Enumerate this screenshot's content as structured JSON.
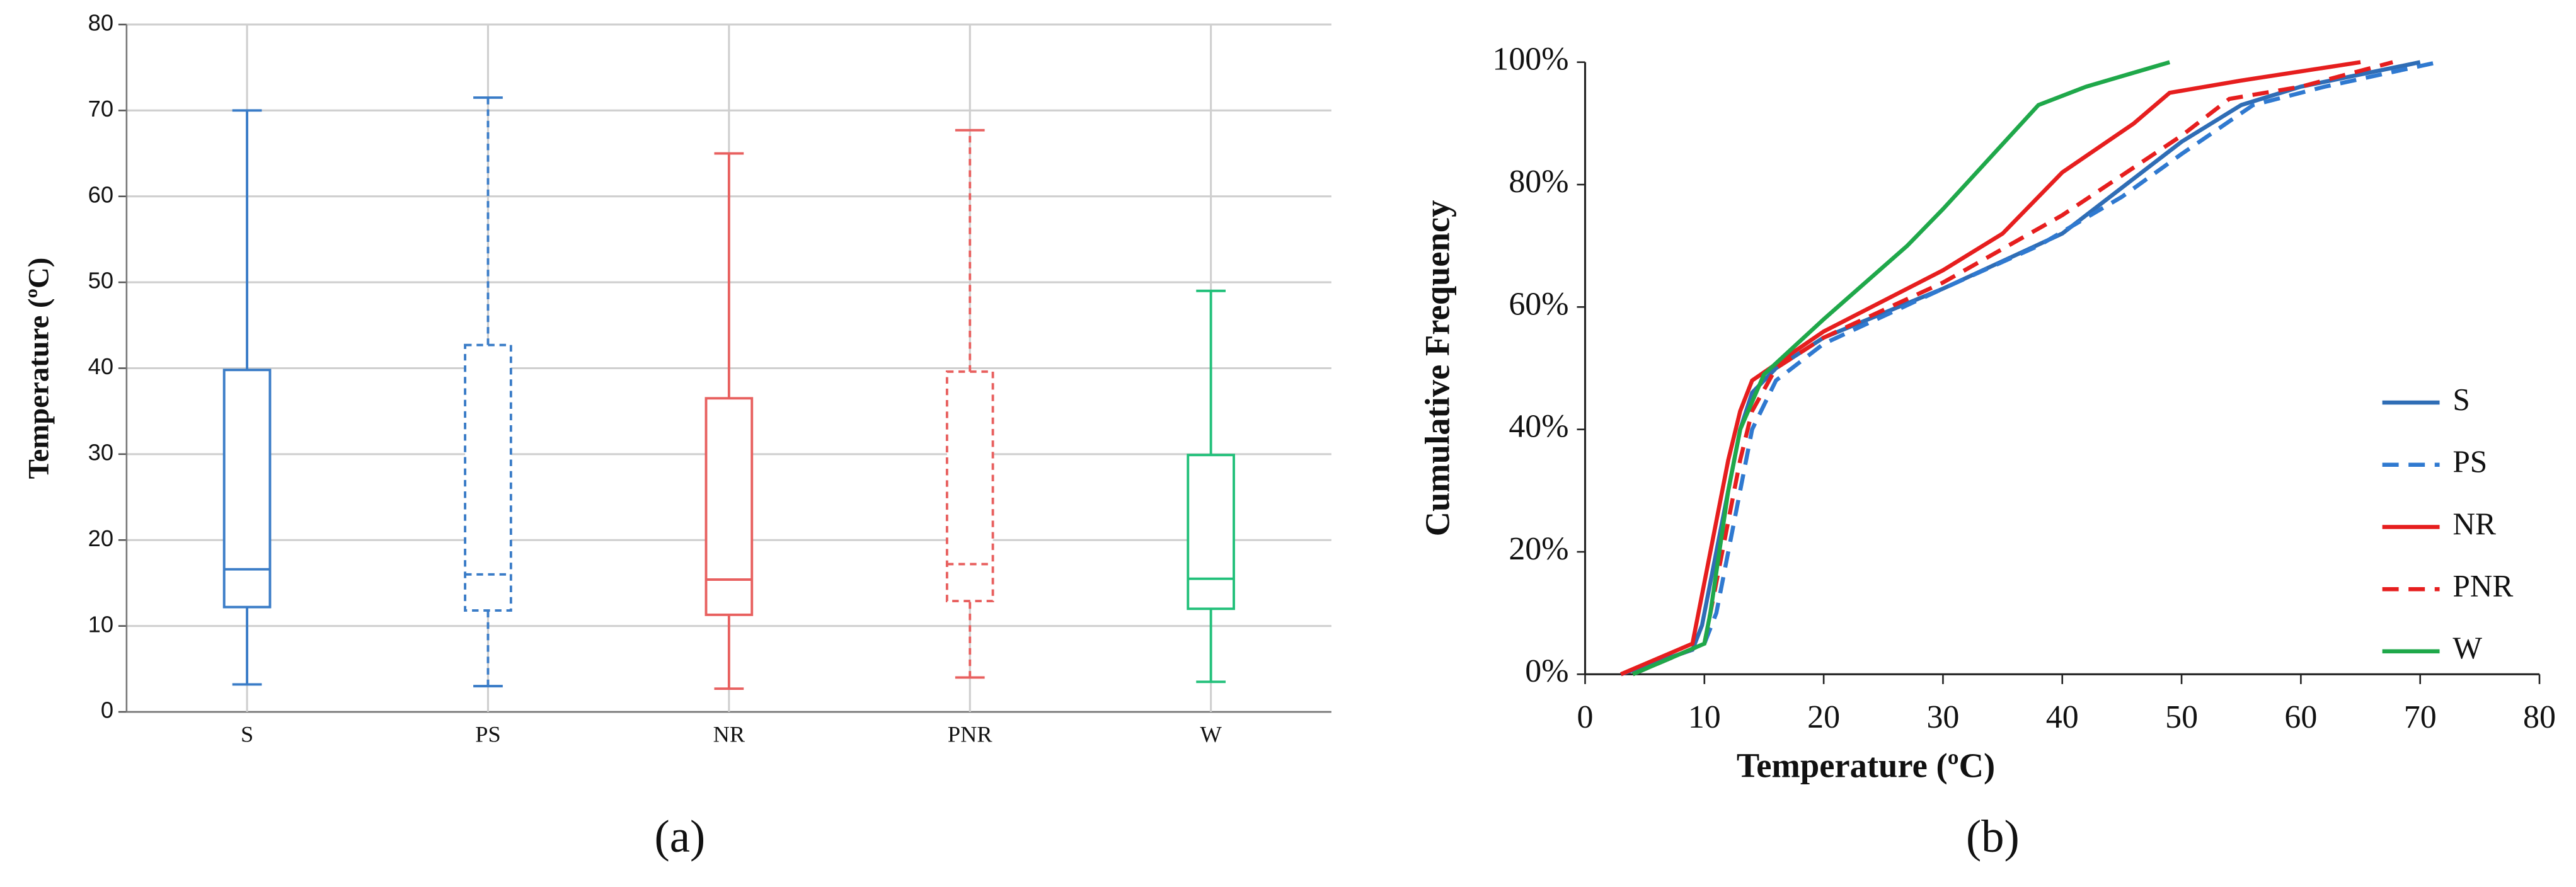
{
  "chart_data": [
    {
      "type": "box",
      "caption": "(a)",
      "y_label": "Temperature  (ºC)",
      "categories": [
        "S",
        "PS",
        "NR",
        "PNR",
        "W"
      ],
      "min": [
        3.2,
        3,
        2.7,
        4,
        3.5
      ],
      "q1": [
        12.2,
        11.8,
        11.3,
        12.9,
        12
      ],
      "median": [
        16.6,
        16,
        15.4,
        17.2,
        15.5
      ],
      "q3": [
        39.8,
        42.7,
        36.5,
        39.6,
        29.9
      ],
      "max": [
        70,
        71.5,
        65,
        67.7,
        49
      ],
      "colors": [
        "#3a7cc7",
        "#3a7cc7",
        "#e8605f",
        "#e8605f",
        "#22c07a"
      ],
      "dashed": [
        false,
        true,
        false,
        true,
        false
      ],
      "ylim": [
        0,
        80
      ],
      "yticks": [
        0,
        10,
        20,
        30,
        40,
        50,
        60,
        70,
        80
      ],
      "grid": true
    },
    {
      "type": "line",
      "caption": "(b)",
      "x_label": "Temperature (ºC)",
      "y_label": "Cumulative  Frequency",
      "xlim": [
        0,
        80
      ],
      "xticks": [
        0,
        10,
        20,
        30,
        40,
        50,
        60,
        70,
        80
      ],
      "ylim": [
        0,
        100
      ],
      "yticks": [
        {
          "value": 0,
          "label": "0%"
        },
        {
          "value": 20,
          "label": "20%"
        },
        {
          "value": 40,
          "label": "40%"
        },
        {
          "value": 60,
          "label": "60%"
        },
        {
          "value": 80,
          "label": "80%"
        },
        {
          "value": 100,
          "label": "100%"
        }
      ],
      "legend": "right",
      "series": [
        {
          "name": "S",
          "color": "#2f6db5",
          "dashed": false,
          "x": [
            3,
            9,
            9.8,
            10.5,
            12,
            13,
            14,
            16,
            20,
            30,
            40,
            50,
            55,
            60,
            70
          ],
          "values": [
            0,
            4,
            8,
            15,
            30,
            40,
            46,
            50,
            55,
            63,
            72,
            87,
            93,
            96,
            100
          ]
        },
        {
          "name": "PS",
          "color": "#2f79d0",
          "dashed": true,
          "x": [
            4,
            10,
            11,
            12,
            13,
            14,
            16,
            20,
            30,
            38,
            45,
            50,
            56,
            62,
            71.5
          ],
          "values": [
            0,
            5,
            10,
            20,
            30,
            40,
            48,
            54,
            63,
            70,
            78,
            85,
            93,
            96,
            100
          ]
        },
        {
          "name": "NR",
          "color": "#e61e1e",
          "dashed": false,
          "x": [
            3,
            9,
            9.5,
            11,
            12,
            13,
            14,
            20,
            30,
            35,
            40,
            46,
            49,
            55,
            65
          ],
          "values": [
            0,
            5,
            10,
            25,
            35,
            43,
            48,
            56,
            66,
            72,
            82,
            90,
            95,
            97,
            100
          ]
        },
        {
          "name": "PNR",
          "color": "#e61e1e",
          "dashed": true,
          "x": [
            4,
            10,
            10.5,
            12,
            13,
            14,
            16,
            20,
            30,
            40,
            50,
            54,
            60,
            67.7
          ],
          "values": [
            0,
            5,
            10,
            25,
            35,
            43,
            50,
            55,
            64,
            75,
            88,
            94,
            96,
            100
          ]
        },
        {
          "name": "W",
          "color": "#1fa84a",
          "dashed": false,
          "x": [
            4,
            10,
            10.5,
            12,
            13,
            15,
            20,
            27,
            30,
            38,
            42,
            49
          ],
          "values": [
            0,
            5,
            10,
            30,
            40,
            49,
            58,
            70,
            76,
            93,
            96,
            100
          ]
        }
      ]
    }
  ]
}
